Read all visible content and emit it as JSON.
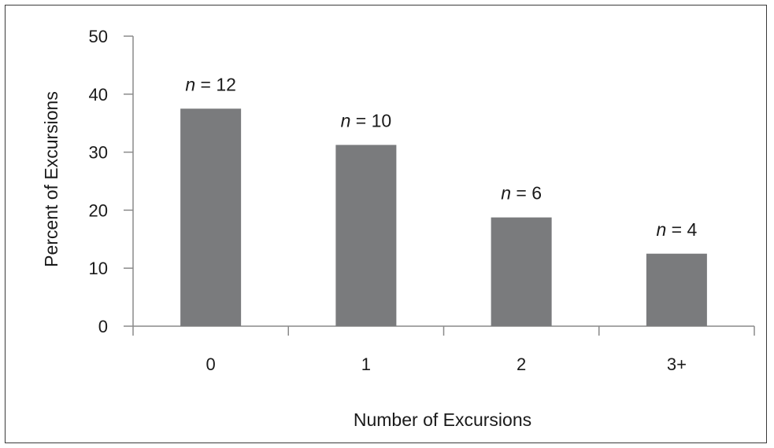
{
  "chart_data": {
    "type": "bar",
    "categories": [
      "0",
      "1",
      "2",
      "3+"
    ],
    "values": [
      37.5,
      31.25,
      18.75,
      12.5
    ],
    "data_labels": [
      {
        "prefix": "n",
        "suffix": " = 12"
      },
      {
        "prefix": "n",
        "suffix": " = 10"
      },
      {
        "prefix": "n",
        "suffix": " = 6"
      },
      {
        "prefix": "n",
        "suffix": " = 4"
      }
    ],
    "xlabel": "Number of Excursions",
    "ylabel": "Percent of Excursions",
    "ylim": [
      0,
      50
    ],
    "yticks": [
      "0",
      "10",
      "20",
      "30",
      "40",
      "50"
    ],
    "grid": false,
    "legend": "none",
    "bar_color": "#7a7b7d",
    "axis_color": "#8a8a8a"
  }
}
